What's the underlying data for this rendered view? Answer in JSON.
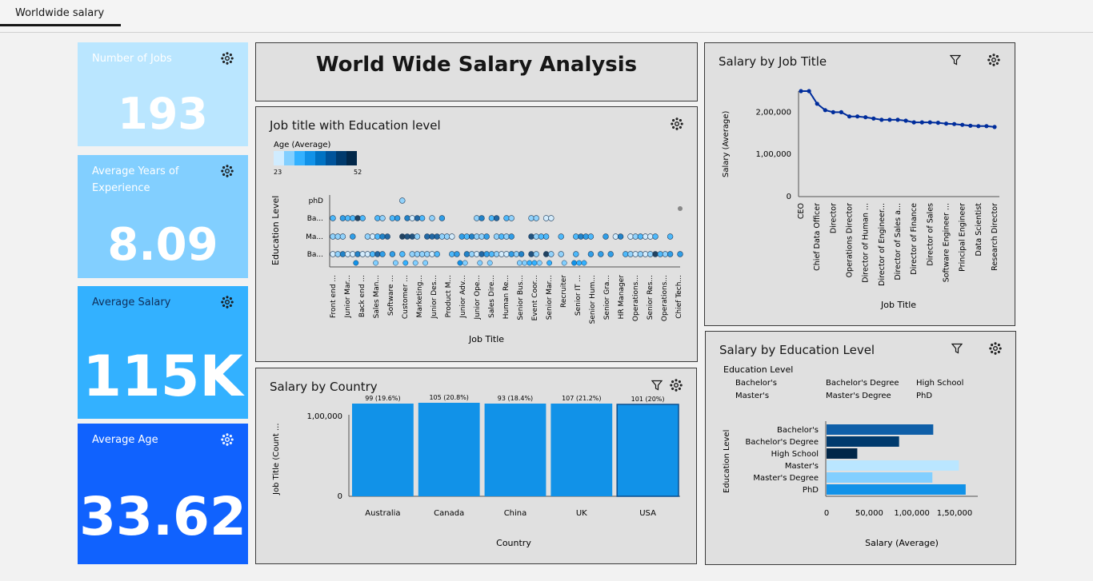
{
  "tab": "Worldwide salary",
  "dashboard_title": "World Wide Salary Analysis",
  "kpis": [
    {
      "label": "Number of Jobs",
      "value": "193"
    },
    {
      "label": "Average Years of Experience",
      "value": "8.09"
    },
    {
      "label": "Average Salary",
      "value": "115K"
    },
    {
      "label": "Average Age",
      "value": "33.62"
    }
  ],
  "colors": {
    "kpi1": "#bae6ff",
    "kpi2": "#82cfff",
    "kpi3": "#33b1ff",
    "kpi4": "#1062fe",
    "bar": "#1192e8",
    "line": "#002d9c",
    "edu": {
      "Bachelor's": "#0f5fa8",
      "Bachelor's Degree": "#003a6d",
      "High School": "#012749",
      "Master's": "#bae6ff",
      "Master's Degree": "#82cfff",
      "PhD": "#1192e8"
    }
  },
  "icons": {
    "settings": "gear-icon",
    "filter": "filter-icon"
  },
  "charts": {
    "job_edu": {
      "title": "Job title with Education level",
      "legend_title": "Age (Average)",
      "legend_min": "23",
      "legend_max": "52",
      "ylabel": "Education Level",
      "xlabel": "Job Title"
    },
    "country": {
      "title": "Salary by Country",
      "ylabel": "Job Title (Count ...",
      "xlabel": "Country"
    },
    "job": {
      "title": "Salary by Job Title",
      "ylabel": "Salary (Average)",
      "xlabel": "Job Title"
    },
    "edu": {
      "title": "Salary by Education Level",
      "legend_title": "Education Level",
      "ylabel": "Education Level",
      "xlabel": "Salary (Average)"
    }
  },
  "chart_data": [
    {
      "id": "job_edu",
      "type": "scatter",
      "title": "Job title with Education level",
      "xlabel": "Job Title",
      "ylabel": "Education Level",
      "legend_title": "Age (Average)",
      "color_range": [
        23,
        52
      ],
      "y_categories": [
        "phD",
        "Ba...",
        "Ma...",
        "Ba..."
      ],
      "x_tick_labels": [
        "Front end ...",
        "Junior Mar...",
        "Back end ...",
        "Sales Man...",
        "Software ...",
        "Customer ...",
        "Marketing...",
        "Junior Des...",
        "Product M...",
        "Junior Adv...",
        "Junior Ope...",
        "Sales Dire...",
        "Human Re...",
        "Senior Bus...",
        "Event Coor...",
        "Senior Mar...",
        "Recruiter",
        "Senior IT ...",
        "Senior Hum...",
        "Senior Gra...",
        "HR Manager",
        "Operations...",
        "Senior Res...",
        "Operations...",
        "Chief Tech..."
      ]
    },
    {
      "id": "country",
      "type": "bar",
      "title": "Salary by Country",
      "xlabel": "Country",
      "ylabel": "Job Title (Count ...",
      "categories": [
        "Australia",
        "Canada",
        "China",
        "UK",
        "USA"
      ],
      "values": [
        116000,
        117000,
        116000,
        116000,
        115000
      ],
      "data_labels": [
        "99 (19.6%)",
        "105 (20.8%)",
        "93 (18.4%)",
        "107 (21.2%)",
        "101 (20%)"
      ],
      "y_ticks": [
        "0",
        "1,00,000"
      ],
      "ylim": [
        0,
        200000
      ]
    },
    {
      "id": "job",
      "type": "line",
      "title": "Salary by Job Title",
      "xlabel": "Job Title",
      "ylabel": "Salary (Average)",
      "x": [
        "CEO",
        "",
        "Chief Data Officer",
        "",
        "Director",
        "",
        "Operations Director",
        "",
        "Director of Human ...",
        "",
        "Director of Engineer...",
        "",
        "Director of Sales a...",
        "",
        "Director of Finance",
        "",
        "Director of Sales",
        "",
        "Software Engineer ...",
        "",
        "Principal Engineer",
        "",
        "Data Scientist",
        "",
        "Research Director"
      ],
      "values": [
        250000,
        250000,
        220000,
        205000,
        200000,
        200000,
        190000,
        190000,
        188000,
        185000,
        182000,
        182000,
        182000,
        180000,
        176000,
        176000,
        176000,
        175000,
        173000,
        172000,
        170000,
        168000,
        167000,
        167000,
        165000
      ],
      "y_ticks": [
        "0",
        "1,00,000",
        "2,00,000"
      ],
      "ylim": [
        0,
        250000
      ]
    },
    {
      "id": "edu",
      "type": "bar",
      "orientation": "horizontal",
      "title": "Salary by Education Level",
      "xlabel": "Salary (Average)",
      "ylabel": "Education Level",
      "legend_title": "Education Level",
      "legend": [
        "Bachelor's",
        "Bachelor's Degree",
        "High School",
        "Master's",
        "Master's Degree",
        "PhD"
      ],
      "categories": [
        "Bachelor's",
        "Bachelor's Degree",
        "High School",
        "Master's",
        "Master's Degree",
        "PhD"
      ],
      "values": [
        125000,
        85000,
        36000,
        155000,
        124000,
        163000
      ],
      "x_ticks": [
        "0",
        "50,000",
        "1,00,000",
        "1,50,000"
      ],
      "xlim": [
        0,
        180000
      ]
    }
  ]
}
